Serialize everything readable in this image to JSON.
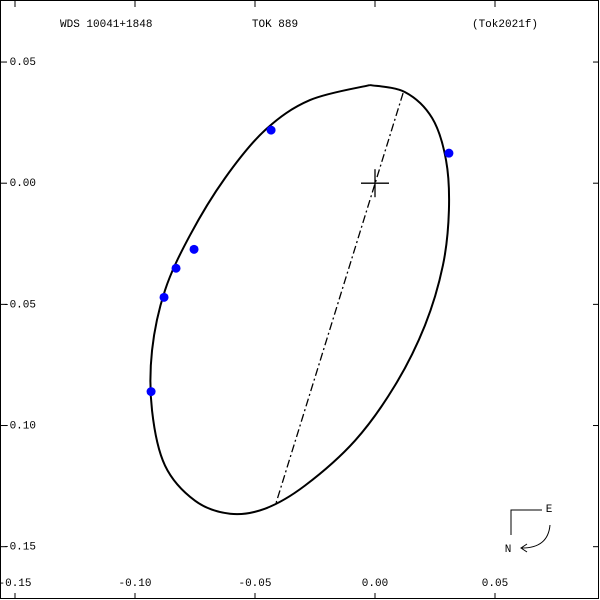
{
  "chart_data": {
    "type": "scatter",
    "header": {
      "left": "WDS 10041+1848",
      "center": "TOK 889",
      "right": "(Tok2021f)"
    },
    "compass": {
      "east": "E",
      "north": "N"
    },
    "xlim": [
      -0.15625,
      0.09375
    ],
    "ylim": [
      -0.172,
      0.0756
    ],
    "xticks": [
      -0.15,
      {
        "value": -0.1,
        "label": "-0.10"
      },
      -0.05,
      {
        "value": 0,
        "label": "0.00"
      },
      0.05
    ],
    "yticks": [
      0.05,
      {
        "value": 0,
        "label": "0.00"
      },
      -0.05,
      {
        "value": -0.1,
        "label": "-0.10"
      },
      -0.15
    ],
    "series": [
      {
        "style": "line",
        "color": "#000000",
        "x": [
          -0.0021,
          0.0125,
          0.0238,
          0.0296,
          0.0308,
          0.0283,
          0.0208,
          0.0083,
          -0.0083,
          -0.0292,
          -0.0458,
          -0.0604,
          -0.075,
          -0.0875,
          -0.0929,
          -0.0929,
          -0.0875,
          -0.0771,
          -0.0625,
          -0.0458,
          -0.0271,
          -0.0021
        ],
        "values": [
          0.0405,
          0.0376,
          0.0269,
          0.0095,
          -0.0112,
          -0.0339,
          -0.0587,
          -0.0835,
          -0.1062,
          -0.1248,
          -0.1343,
          -0.1364,
          -0.131,
          -0.1165,
          -0.0938,
          -0.069,
          -0.0442,
          -0.0215,
          0.0021,
          0.0219,
          0.0343,
          0.0405
        ]
      },
      {
        "style": "dashdot",
        "color": "#000000",
        "x": [
          0.0117,
          -0.0413
        ],
        "values": [
          0.0372,
          -0.1322
        ]
      },
      {
        "style": "points",
        "color": "#0000ff",
        "x": [
          -0.0433,
          0.0308,
          -0.0754,
          -0.0829,
          -0.0879,
          -0.0933
        ],
        "values": [
          0.0219,
          0.0124,
          -0.0273,
          -0.0351,
          -0.0471,
          -0.086
        ]
      }
    ]
  }
}
